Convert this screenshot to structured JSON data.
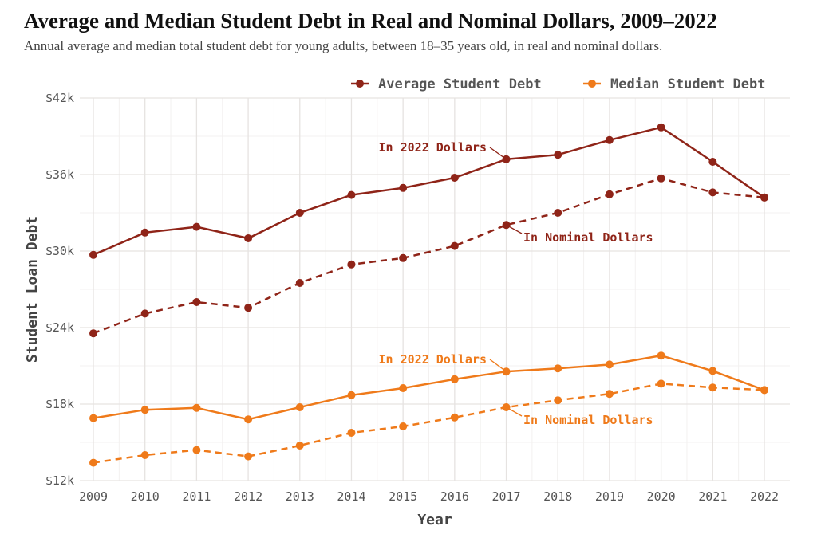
{
  "chart_data": {
    "type": "line",
    "title": "Average and Median Student Debt in Real and Nominal Dollars, 2009–2022",
    "subtitle": "Annual average and median total student debt for young adults, between 18–35 years old, in real and nominal dollars.",
    "xlabel": "Year",
    "ylabel": "Student Loan Debt",
    "x": [
      2009,
      2010,
      2011,
      2012,
      2013,
      2014,
      2015,
      2016,
      2017,
      2018,
      2019,
      2020,
      2021,
      2022
    ],
    "ylim": [
      12000,
      42000
    ],
    "yticks": [
      12000,
      18000,
      24000,
      30000,
      36000,
      42000
    ],
    "ytick_labels": [
      "$12k",
      "$18k",
      "$24k",
      "$30k",
      "$36k",
      "$42k"
    ],
    "grid": true,
    "legend_position": "top-right",
    "legend": [
      {
        "name": "Average Student Debt",
        "color": "#8f2418"
      },
      {
        "name": "Median Student Debt",
        "color": "#ef7a1a"
      }
    ],
    "series": [
      {
        "group": "Average Student Debt",
        "style": "solid",
        "label": "In 2022 Dollars",
        "color": "#8f2418",
        "values": [
          29700,
          31450,
          31900,
          31000,
          33000,
          34400,
          34950,
          35750,
          37200,
          37550,
          38700,
          39700,
          37000,
          34200
        ]
      },
      {
        "group": "Average Student Debt",
        "style": "dashed",
        "label": "In Nominal Dollars",
        "color": "#8f2418",
        "values": [
          23550,
          25100,
          26000,
          25550,
          27500,
          28950,
          29450,
          30400,
          32050,
          33000,
          34450,
          35700,
          34600,
          34200
        ]
      },
      {
        "group": "Median Student Debt",
        "style": "solid",
        "label": "In 2022 Dollars",
        "color": "#ef7a1a",
        "values": [
          16900,
          17550,
          17700,
          16800,
          17750,
          18700,
          19250,
          19950,
          20550,
          20800,
          21100,
          21800,
          20600,
          19100
        ]
      },
      {
        "group": "Median Student Debt",
        "style": "dashed",
        "label": "In Nominal Dollars",
        "color": "#ef7a1a",
        "values": [
          13400,
          14000,
          14400,
          13900,
          14750,
          15750,
          16250,
          16950,
          17750,
          18300,
          18800,
          19600,
          19300,
          19100
        ]
      }
    ]
  }
}
